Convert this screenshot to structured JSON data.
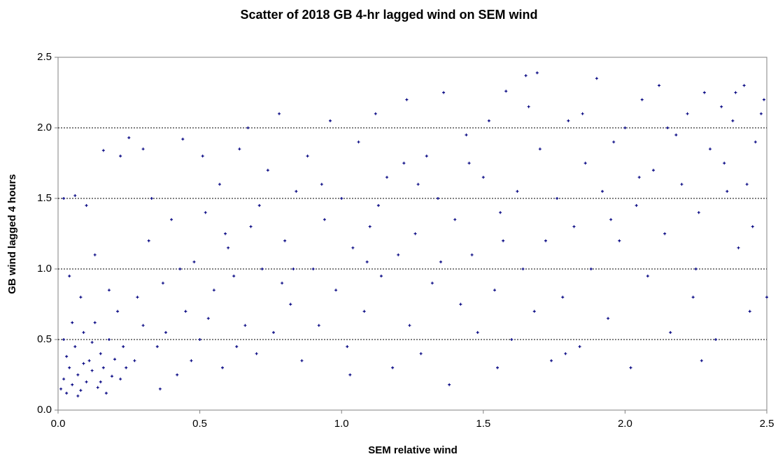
{
  "chart_data": {
    "type": "scatter",
    "title": "Scatter of 2018 GB 4-hr lagged wind on SEM wind",
    "x_label": "SEM relative wind",
    "y_label": "GB wind lagged 4 hours",
    "color": "#000080",
    "grid": true,
    "xlim": [
      0,
      2.5
    ],
    "ylim": [
      0,
      2.5
    ],
    "xticks": [
      {
        "value": 0,
        "label": "0.0"
      },
      0.5,
      {
        "value": 1,
        "label": "1.0"
      },
      1.5,
      {
        "value": 2,
        "label": "2.0"
      },
      2.5
    ],
    "yticks": [
      {
        "value": 0,
        "label": "0.0"
      },
      0.5,
      {
        "value": 1,
        "label": "1.0"
      },
      1.5,
      {
        "value": 2,
        "label": "2.0"
      },
      2.5
    ],
    "x": [
      0.01,
      0.02,
      0.03,
      0.04,
      0.05,
      0.06,
      0.07,
      0.08,
      0.09,
      0.1,
      0.11,
      0.12,
      0.13,
      0.14,
      0.15,
      0.16,
      0.17,
      0.18,
      0.19,
      0.2,
      0.21,
      0.22,
      0.23,
      0.24,
      0.02,
      0.03,
      0.05,
      0.07,
      0.09,
      0.12,
      0.15,
      0.18,
      0.02,
      0.06,
      0.1,
      0.16,
      0.22,
      0.25,
      0.3,
      0.04,
      0.08,
      0.13,
      0.27,
      0.3,
      0.32,
      0.35,
      0.37,
      0.4,
      0.42,
      0.44,
      0.45,
      0.48,
      0.5,
      0.52,
      0.55,
      0.57,
      0.58,
      0.6,
      0.62,
      0.64,
      0.66,
      0.68,
      0.7,
      0.72,
      0.74,
      0.28,
      0.33,
      0.38,
      0.43,
      0.47,
      0.53,
      0.59,
      0.63,
      0.67,
      0.71,
      0.36,
      0.51,
      0.76,
      0.78,
      0.8,
      0.82,
      0.84,
      0.86,
      0.88,
      0.9,
      0.92,
      0.94,
      0.96,
      0.98,
      1.0,
      1.02,
      1.04,
      1.06,
      1.08,
      1.1,
      1.12,
      1.14,
      1.16,
      1.18,
      1.2,
      1.22,
      1.24,
      0.83,
      0.93,
      1.03,
      1.13,
      1.23,
      0.79,
      1.09,
      1.26,
      1.28,
      1.3,
      1.32,
      1.34,
      1.36,
      1.38,
      1.4,
      1.42,
      1.44,
      1.46,
      1.48,
      1.5,
      1.52,
      1.54,
      1.56,
      1.58,
      1.6,
      1.62,
      1.64,
      1.66,
      1.68,
      1.7,
      1.72,
      1.74,
      1.69,
      1.65,
      1.35,
      1.45,
      1.55,
      1.27,
      1.57,
      1.76,
      1.78,
      1.8,
      1.82,
      1.84,
      1.86,
      1.88,
      1.9,
      1.92,
      1.94,
      1.96,
      1.98,
      2.0,
      2.02,
      2.04,
      2.06,
      2.08,
      2.1,
      2.12,
      2.14,
      2.16,
      2.18,
      2.2,
      2.22,
      2.24,
      2.26,
      2.28,
      2.3,
      2.32,
      2.34,
      2.36,
      2.38,
      2.4,
      2.42,
      2.44,
      2.46,
      2.48,
      2.5,
      2.49,
      2.45,
      2.35,
      2.25,
      2.15,
      2.05,
      1.95,
      1.85,
      1.79,
      2.27,
      2.43,
      2.39
    ],
    "values": [
      0.15,
      0.22,
      0.12,
      0.3,
      0.18,
      0.45,
      0.25,
      0.14,
      0.55,
      0.2,
      0.35,
      0.28,
      0.62,
      0.16,
      0.4,
      0.3,
      0.12,
      0.5,
      0.24,
      0.36,
      0.7,
      0.22,
      0.45,
      0.3,
      0.5,
      0.38,
      0.62,
      0.1,
      0.33,
      0.48,
      0.2,
      0.85,
      1.5,
      1.52,
      1.45,
      1.84,
      1.8,
      1.93,
      1.85,
      0.95,
      0.8,
      1.1,
      0.35,
      0.6,
      1.2,
      0.45,
      0.9,
      1.35,
      0.25,
      1.92,
      0.7,
      1.05,
      0.5,
      1.4,
      0.85,
      1.6,
      0.3,
      1.15,
      0.95,
      1.85,
      0.6,
      1.3,
      0.4,
      1.0,
      1.7,
      0.8,
      1.5,
      0.55,
      1.0,
      0.35,
      0.65,
      1.25,
      0.45,
      2.0,
      1.45,
      0.15,
      1.8,
      0.55,
      2.1,
      1.2,
      0.75,
      1.55,
      0.35,
      1.8,
      1.0,
      0.6,
      1.35,
      2.05,
      0.85,
      1.5,
      0.45,
      1.15,
      1.9,
      0.7,
      1.3,
      2.1,
      0.95,
      1.65,
      0.3,
      1.1,
      1.75,
      0.6,
      1.0,
      1.6,
      0.25,
      1.45,
      2.2,
      0.9,
      1.05,
      1.25,
      0.4,
      1.8,
      0.9,
      1.5,
      2.25,
      0.18,
      1.35,
      0.75,
      1.95,
      1.1,
      0.55,
      1.65,
      2.05,
      0.85,
      1.4,
      2.26,
      0.5,
      1.55,
      1.0,
      2.15,
      0.7,
      1.85,
      1.2,
      0.35,
      2.39,
      2.37,
      1.05,
      1.75,
      0.3,
      1.6,
      1.2,
      1.5,
      0.8,
      2.05,
      1.3,
      0.45,
      1.75,
      1.0,
      2.35,
      1.55,
      0.65,
      1.9,
      1.2,
      2.0,
      0.3,
      1.45,
      2.2,
      0.95,
      1.7,
      2.3,
      1.25,
      0.55,
      1.95,
      1.6,
      2.1,
      0.8,
      1.4,
      2.25,
      1.85,
      0.5,
      2.15,
      1.55,
      2.05,
      1.15,
      2.3,
      0.7,
      1.9,
      2.1,
      0.8,
      2.2,
      1.3,
      1.75,
      1.0,
      2.0,
      1.65,
      1.35,
      2.1,
      0.4,
      0.35,
      1.6,
      2.25
    ]
  }
}
